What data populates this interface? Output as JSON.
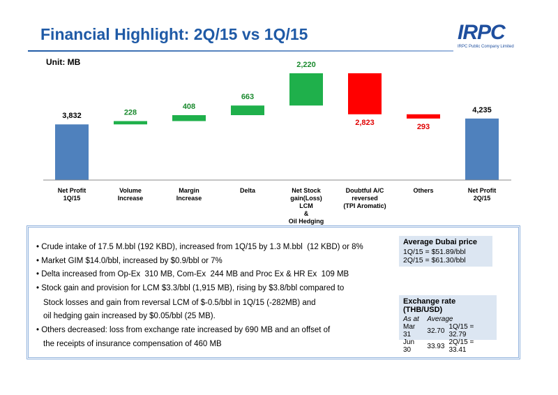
{
  "header": {
    "title": "Financial Highlight: 2Q/15 vs 1Q/15",
    "logo": "IRPC",
    "company": "IRPC Public Company Limited"
  },
  "chart_data": {
    "type": "waterfall",
    "unit_label": "Unit: MB",
    "categories": [
      "Net Profit\n1Q/15",
      "Volume\nIncrease",
      "Margin\nIncrease",
      "Delta",
      "Net Stock\ngain(Loss)\nLCM\n&\nOil Hedging",
      "Doubtful A/C\nreversed\n(TPI Aromatic)",
      "Others",
      "Net Profit\n2Q/15"
    ],
    "values": [
      3832,
      228,
      408,
      663,
      2220,
      -2823,
      -293,
      4235
    ],
    "value_labels": [
      "3,832",
      "228",
      "408",
      "663",
      "2,220",
      "2,823",
      "293",
      "4,235"
    ],
    "colors": [
      "#4f81bd",
      "#1fb04b",
      "#1fb04b",
      "#1fb04b",
      "#1fb04b",
      "#ff0000",
      "#ff0000",
      "#4f81bd"
    ],
    "label_colors": [
      "#000000",
      "#1a8a2e",
      "#1a8a2e",
      "#1a8a2e",
      "#1a8a2e",
      "#e00000",
      "#e00000",
      "#000000"
    ]
  },
  "bullets": [
    [
      "Crude intake of 17.5 M.bbl (192 KBD), increased from 1Q/15 by 1.3 M.bbl  (12 KBD) or 8%"
    ],
    [
      "Market GIM $14.0/bbl, increased by $0.9/bbl or 7%"
    ],
    [
      "Delta increased from Op-Ex  310 MB, Com-Ex  244 MB and Proc Ex & HR Ex  109 MB"
    ],
    [
      "Stock gain and provision for LCM $3.3/bbl (1,915 MB), rising by $3.8/bbl compared to",
      "Stock losses and gain from reversal LCM of $-0.5/bbl in 1Q/15 (-282MB) and",
      "oil hedging gain increased by $0.05/bbl (25 MB)."
    ],
    [
      "Others decreased: loss from exchange rate increased by 690 MB and an offset of",
      "the receipts of insurance compensation of 460 MB"
    ]
  ],
  "dubai": {
    "title": "Average Dubai price",
    "rows": [
      "1Q/15 =  $51.89/bbl",
      "2Q/15 =  $61.30/bbl"
    ]
  },
  "exchange": {
    "title": "Exchange rate (THB/USD)",
    "headers": [
      "As at",
      "Average"
    ],
    "rows": [
      [
        "Mar 31",
        "32.70",
        "1Q/15 = 32.79"
      ],
      [
        "Jun 30",
        "33.93",
        "2Q/15 = 33.41"
      ]
    ]
  }
}
